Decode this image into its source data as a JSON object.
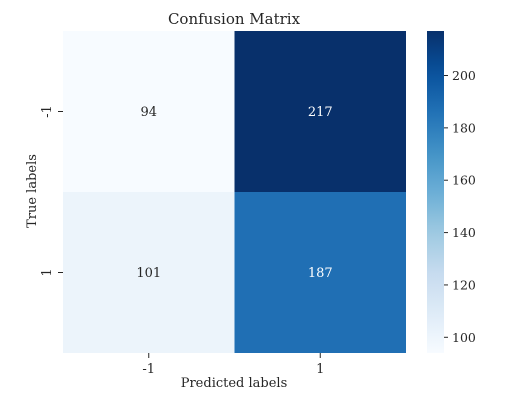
{
  "chart_data": {
    "type": "heatmap",
    "title": "Confusion Matrix",
    "xlabel": "Predicted labels",
    "ylabel": "True labels",
    "x_categories": [
      "-1",
      "1"
    ],
    "y_categories": [
      "-1",
      "1"
    ],
    "values": [
      [
        94,
        217
      ],
      [
        101,
        187
      ]
    ],
    "colormap": "Blues",
    "colorbar": {
      "range": [
        94,
        217
      ],
      "ticks": [
        100,
        120,
        140,
        160,
        180,
        200
      ],
      "tick_labels": [
        "100",
        "120",
        "140",
        "160",
        "180",
        "200"
      ]
    },
    "colors": {
      "low": "#f7fbff",
      "high": "#08306b",
      "text_dark": "#262626",
      "text_light": "#ffffff"
    }
  }
}
